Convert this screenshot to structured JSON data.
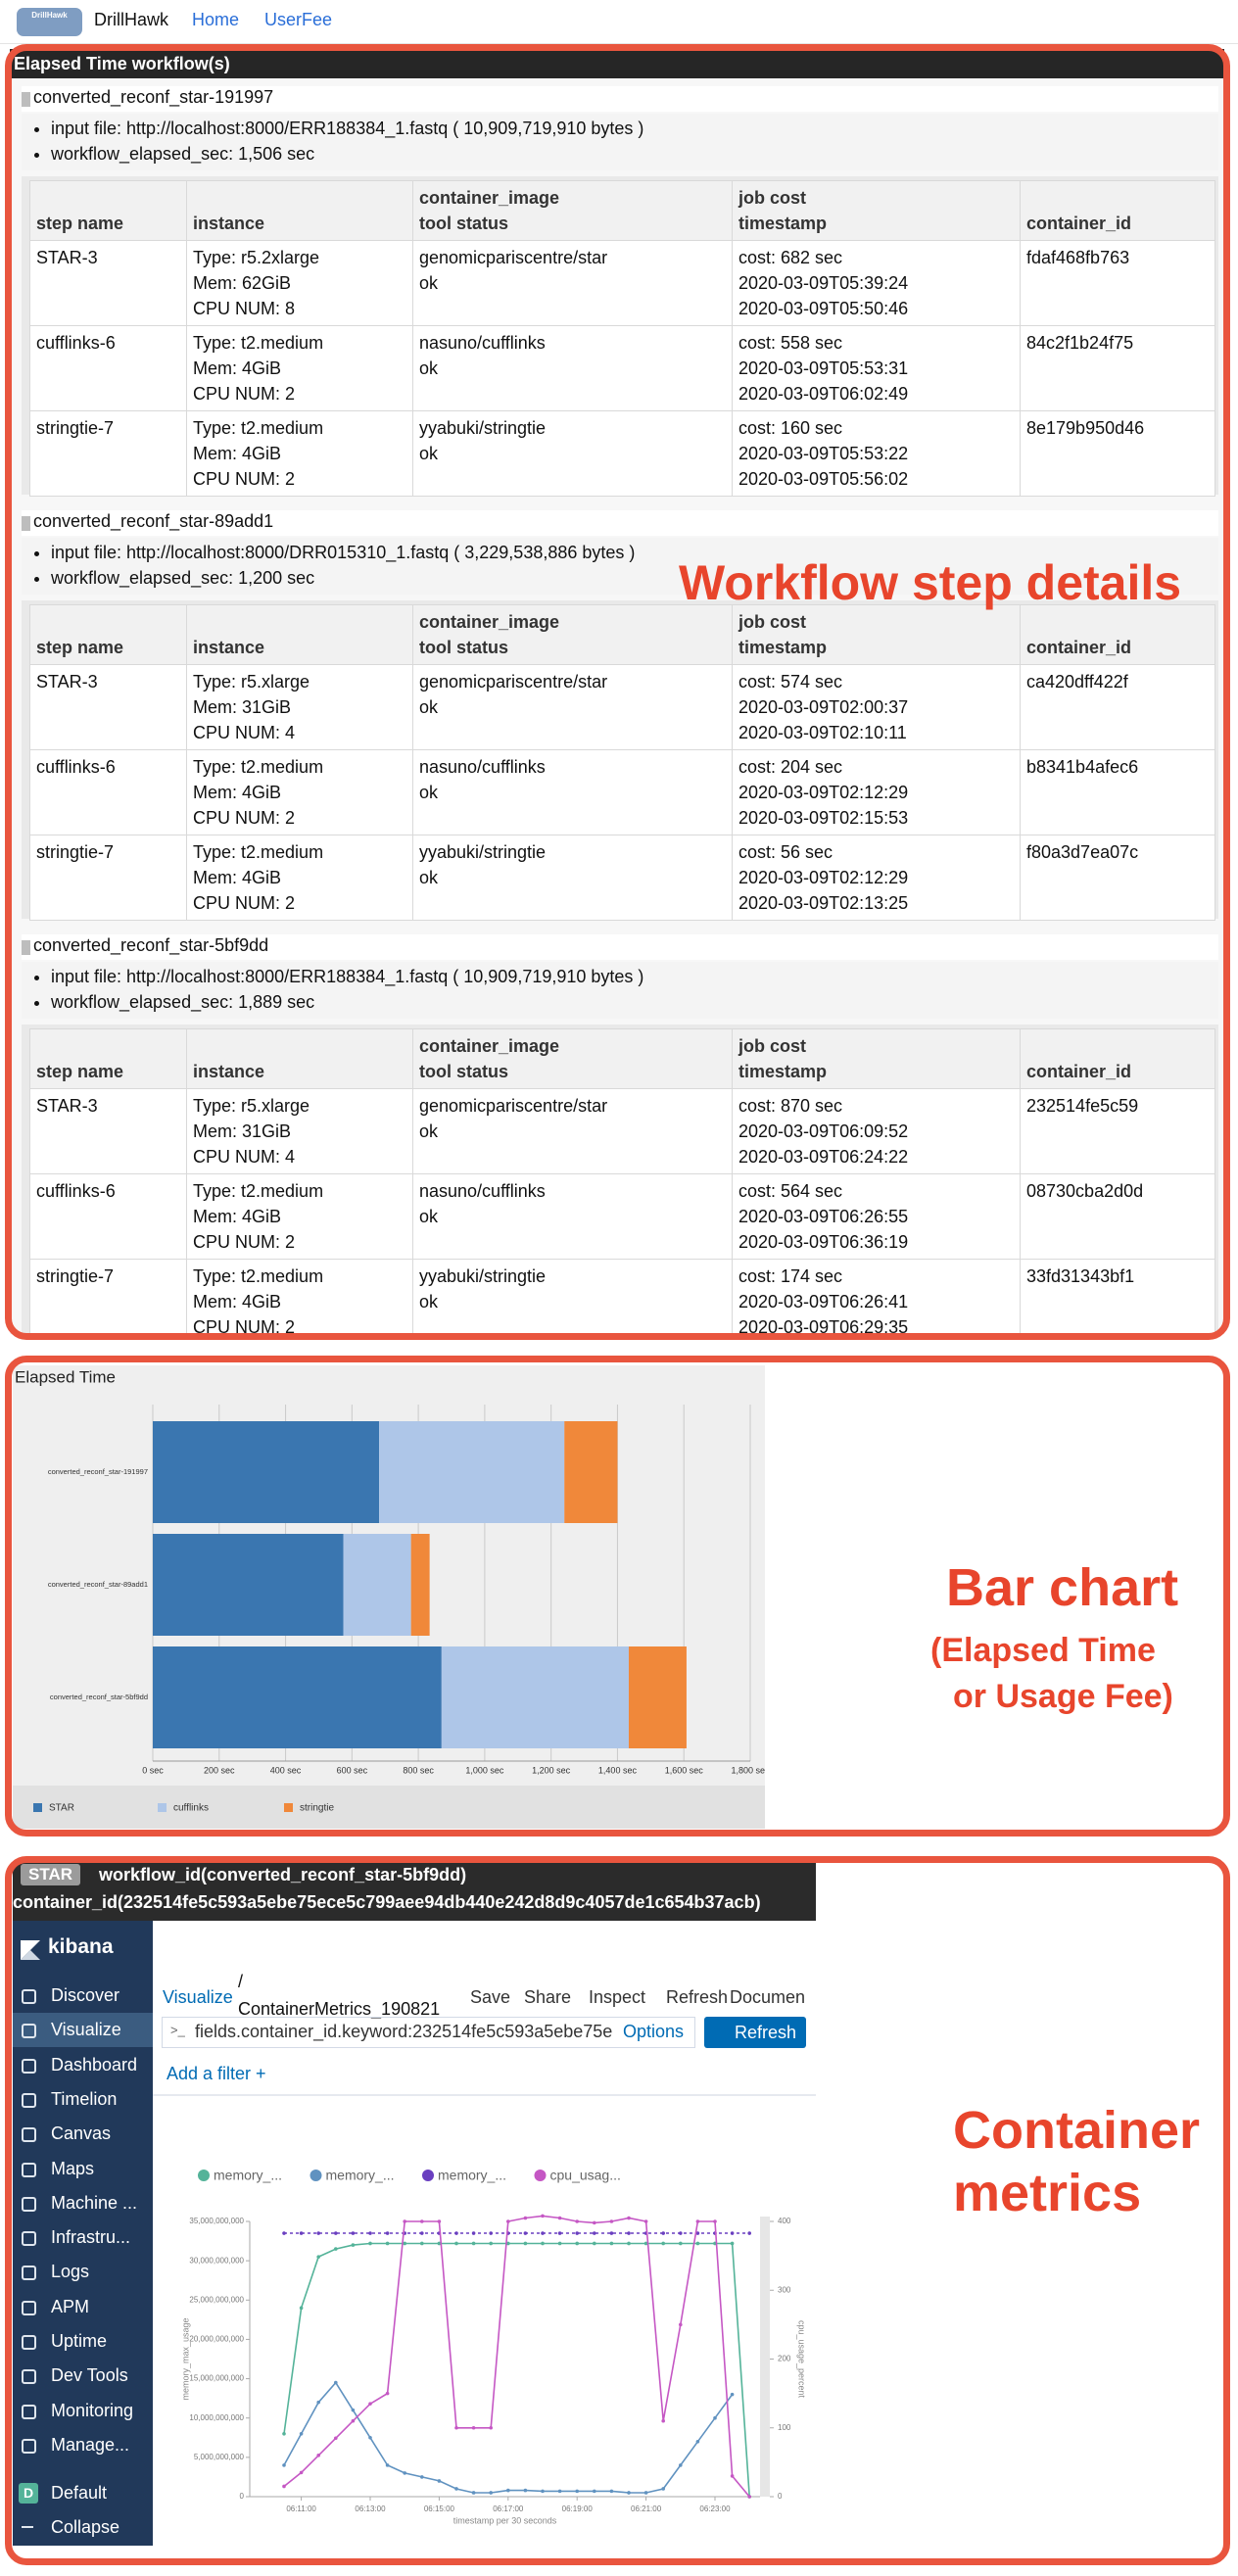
{
  "nav": {
    "logo": "DrillHawk",
    "brand": "DrillHawk",
    "links": [
      "Home",
      "UserFee"
    ]
  },
  "workflows_header": "Elapsed Time workflow(s)",
  "table_headers": {
    "step": "step name",
    "instance": "instance",
    "image": "container_image",
    "status": "tool status",
    "cost": "job cost",
    "timestamp": "timestamp",
    "container_id": "container_id"
  },
  "workflows": [
    {
      "name": "converted_reconf_star-191997",
      "input_file": "input file: http://localhost:8000/ERR188384_1.fastq ( 10,909,719,910 bytes )",
      "elapsed": "workflow_elapsed_sec: 1,506 sec",
      "steps": [
        {
          "step": "STAR-3",
          "type": "Type: r5.2xlarge",
          "mem": "Mem: 62GiB",
          "cpu": "CPU NUM: 8",
          "image": "genomicpariscentre/star",
          "status": "ok",
          "cost": "cost: 682 sec",
          "start": "2020-03-09T05:39:24",
          "end": "2020-03-09T05:50:46",
          "id": "fdaf468fb763"
        },
        {
          "step": "cufflinks-6",
          "type": "Type: t2.medium",
          "mem": "Mem: 4GiB",
          "cpu": "CPU NUM: 2",
          "image": "nasuno/cufflinks",
          "status": "ok",
          "cost": "cost: 558 sec",
          "start": "2020-03-09T05:53:31",
          "end": "2020-03-09T06:02:49",
          "id": "84c2f1b24f75"
        },
        {
          "step": "stringtie-7",
          "type": "Type: t2.medium",
          "mem": "Mem: 4GiB",
          "cpu": "CPU NUM: 2",
          "image": "yyabuki/stringtie",
          "status": "ok",
          "cost": "cost: 160 sec",
          "start": "2020-03-09T05:53:22",
          "end": "2020-03-09T05:56:02",
          "id": "8e179b950d46"
        }
      ]
    },
    {
      "name": "converted_reconf_star-89add1",
      "input_file": "input file: http://localhost:8000/DRR015310_1.fastq ( 3,229,538,886 bytes )",
      "elapsed": "workflow_elapsed_sec: 1,200 sec",
      "steps": [
        {
          "step": "STAR-3",
          "type": "Type: r5.xlarge",
          "mem": "Mem: 31GiB",
          "cpu": "CPU NUM: 4",
          "image": "genomicpariscentre/star",
          "status": "ok",
          "cost": "cost: 574 sec",
          "start": "2020-03-09T02:00:37",
          "end": "2020-03-09T02:10:11",
          "id": "ca420dff422f"
        },
        {
          "step": "cufflinks-6",
          "type": "Type: t2.medium",
          "mem": "Mem: 4GiB",
          "cpu": "CPU NUM: 2",
          "image": "nasuno/cufflinks",
          "status": "ok",
          "cost": "cost: 204 sec",
          "start": "2020-03-09T02:12:29",
          "end": "2020-03-09T02:15:53",
          "id": "b8341b4afec6"
        },
        {
          "step": "stringtie-7",
          "type": "Type: t2.medium",
          "mem": "Mem: 4GiB",
          "cpu": "CPU NUM: 2",
          "image": "yyabuki/stringtie",
          "status": "ok",
          "cost": "cost: 56 sec",
          "start": "2020-03-09T02:12:29",
          "end": "2020-03-09T02:13:25",
          "id": "f80a3d7ea07c"
        }
      ]
    },
    {
      "name": "converted_reconf_star-5bf9dd",
      "input_file": "input file: http://localhost:8000/ERR188384_1.fastq ( 10,909,719,910 bytes )",
      "elapsed": "workflow_elapsed_sec: 1,889 sec",
      "steps": [
        {
          "step": "STAR-3",
          "type": "Type: r5.xlarge",
          "mem": "Mem: 31GiB",
          "cpu": "CPU NUM: 4",
          "image": "genomicpariscentre/star",
          "status": "ok",
          "cost": "cost: 870 sec",
          "start": "2020-03-09T06:09:52",
          "end": "2020-03-09T06:24:22",
          "id": "232514fe5c59"
        },
        {
          "step": "cufflinks-6",
          "type": "Type: t2.medium",
          "mem": "Mem: 4GiB",
          "cpu": "CPU NUM: 2",
          "image": "nasuno/cufflinks",
          "status": "ok",
          "cost": "cost: 564 sec",
          "start": "2020-03-09T06:26:55",
          "end": "2020-03-09T06:36:19",
          "id": "08730cba2d0d"
        },
        {
          "step": "stringtie-7",
          "type": "Type: t2.medium",
          "mem": "Mem: 4GiB",
          "cpu": "CPU NUM: 2",
          "image": "yyabuki/stringtie",
          "status": "ok",
          "cost": "cost: 174 sec",
          "start": "2020-03-09T06:26:41",
          "end": "2020-03-09T06:29:35",
          "id": "33fd31343bf1"
        }
      ]
    }
  ],
  "chart_data": [
    {
      "type": "bar",
      "orientation": "horizontal",
      "stacked": true,
      "title": "Elapsed Time",
      "categories": [
        "converted_reconf_star-191997",
        "converted_reconf_star-89add1",
        "converted_reconf_star-5bf9dd"
      ],
      "series": [
        {
          "name": "STAR",
          "color": "#3a76b0",
          "values": [
            682,
            574,
            870
          ]
        },
        {
          "name": "cufflinks",
          "color": "#aec6e8",
          "values": [
            558,
            204,
            564
          ]
        },
        {
          "name": "stringtie",
          "color": "#f0883a",
          "values": [
            160,
            56,
            174
          ]
        }
      ],
      "xlim": [
        0,
        1800
      ],
      "xticks": [
        {
          "value": 0,
          "label": "0 sec"
        },
        {
          "value": 200,
          "label": "200 sec"
        },
        {
          "value": 400,
          "label": "400 sec"
        },
        {
          "value": 600,
          "label": "600 sec"
        },
        {
          "value": 800,
          "label": "800 sec"
        },
        {
          "value": 1000,
          "label": "1,000 sec"
        },
        {
          "value": 1200,
          "label": "1,200 sec"
        },
        {
          "value": 1400,
          "label": "1,400 sec"
        },
        {
          "value": 1600,
          "label": "1,600 sec"
        },
        {
          "value": 1800,
          "label": "1,800 sec"
        }
      ],
      "grid": true,
      "legend": "bottom"
    },
    {
      "type": "line",
      "legend": "top-left",
      "x_label": "timestamp per 30 seconds",
      "y_label": "memory_max_usage",
      "y2_label": "cpu_usage_percent",
      "categories": [
        null,
        "06:11:00",
        null,
        null,
        null,
        "06:13:00",
        null,
        null,
        null,
        "06:15:00",
        null,
        null,
        null,
        "06:17:00",
        null,
        null,
        null,
        "06:19:00",
        null,
        null,
        null,
        "06:21:00",
        null,
        null,
        null,
        "06:23:00",
        null,
        null
      ],
      "ylim": [
        0,
        35000000000
      ],
      "yticks": [
        0,
        {
          "value": 5000000000,
          "label": "5,000,000,000"
        },
        {
          "value": 10000000000,
          "label": "10,000,000,000"
        },
        {
          "value": 15000000000,
          "label": "15,000,000,000"
        },
        {
          "value": 20000000000,
          "label": "20,000,000,000"
        },
        {
          "value": 25000000000,
          "label": "25,000,000,000"
        },
        {
          "value": 30000000000,
          "label": "30,000,000,000"
        },
        {
          "value": 35000000000,
          "label": "35,000,000,000"
        }
      ],
      "y2lim": [
        0,
        400
      ],
      "y2ticks": [
        0,
        100,
        200,
        300,
        400
      ],
      "series": [
        {
          "name": "memory_...",
          "color": "#54b399",
          "values": [
            8000000000,
            24000000000,
            30500000000,
            31500000000,
            32000000000,
            32200000000,
            32200000000,
            32200000000,
            32200000000,
            32200000000,
            32200000000,
            32200000000,
            32200000000,
            32200000000,
            32200000000,
            32200000000,
            32200000000,
            32200000000,
            32200000000,
            32200000000,
            32200000000,
            32200000000,
            32200000000,
            32200000000,
            32200000000,
            32200000000,
            32200000000,
            0
          ]
        },
        {
          "name": "memory_...",
          "color": "#6092c0",
          "values": [
            4000000000,
            8000000000,
            12000000000,
            14500000000,
            11000000000,
            7500000000,
            4000000000,
            3000000000,
            2500000000,
            2000000000,
            1000000000,
            500000000,
            500000000,
            800000000,
            800000000,
            700000000,
            700000000,
            700000000,
            700000000,
            700000000,
            500000000,
            500000000,
            1000000000,
            4000000000,
            7000000000,
            10000000000,
            13000000000,
            null
          ]
        },
        {
          "name": "memory_...",
          "color": "#6a3fc0",
          "style": "dashed",
          "values": [
            33500000000,
            33500000000,
            33500000000,
            33500000000,
            33500000000,
            33500000000,
            33500000000,
            33500000000,
            33500000000,
            33500000000,
            33500000000,
            33500000000,
            33500000000,
            33500000000,
            33500000000,
            33500000000,
            33500000000,
            33500000000,
            33500000000,
            33500000000,
            33500000000,
            33500000000,
            33500000000,
            33500000000,
            33500000000,
            33500000000,
            33500000000,
            33500000000
          ]
        },
        {
          "name": "cpu_usag...",
          "color": "#c557c4",
          "axis": "y2",
          "values": [
            15,
            35,
            60,
            85,
            110,
            135,
            150,
            400,
            400,
            400,
            100,
            100,
            100,
            400,
            405,
            408,
            405,
            400,
            398,
            400,
            405,
            400,
            110,
            250,
            400,
            400,
            30,
            0
          ]
        }
      ]
    }
  ],
  "kibana": {
    "badge": "STAR",
    "workflow": "workflow_id(converted_reconf_star-5bf9dd)",
    "container": "container_id(232514fe5c593a5ebe75ece5c799aee94db440e242d8d9c4057de1c654b37acb)",
    "logo": "kibana",
    "sidebar": [
      "Discover",
      "Visualize",
      "Dashboard",
      "Timelion",
      "Canvas",
      "Maps",
      "Machine ...",
      "Infrastru...",
      "Logs",
      "APM",
      "Uptime",
      "Dev Tools",
      "Monitoring",
      "Manage..."
    ],
    "default_badge": "D",
    "default": "Default",
    "collapse": "Collapse",
    "crumb": "Visualize",
    "crumb_sep": "/",
    "crumb_page": "ContainerMetrics_190821",
    "actions": [
      "Save",
      "Share",
      "Inspect",
      "Refresh",
      "Documen"
    ],
    "prompt": ">_",
    "query": "fields.container_id.keyword:232514fe5c593a5ebe75e",
    "options": "Options",
    "refresh": "Refresh",
    "add_filter": "Add a filter +"
  },
  "annotations": {
    "workflow": "Workflow step details",
    "bar_chart": "Bar chart",
    "bar_chart_note": [
      "(Elapsed Time",
      "or Usage Fee)"
    ],
    "container": [
      "Container",
      "metrics"
    ]
  }
}
